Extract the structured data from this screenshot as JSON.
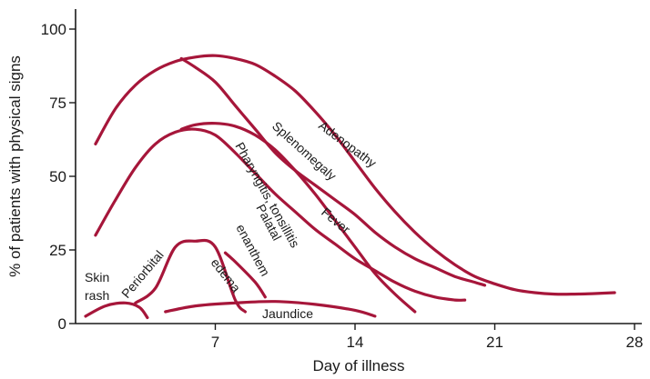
{
  "chart_data": {
    "type": "line",
    "xlabel": "Day of illness",
    "ylabel": "% of patients with physical signs",
    "xlim": [
      0,
      28
    ],
    "ylim": [
      0,
      100
    ],
    "xticks": [
      7,
      14,
      21,
      28
    ],
    "yticks": [
      0,
      25,
      50,
      75,
      100
    ],
    "grid": false,
    "legend": "none",
    "color": "#a6163a",
    "series": [
      {
        "name": "Adenopathy",
        "x": [
          1,
          2,
          3,
          4,
          5,
          6,
          7,
          8,
          9,
          10,
          11,
          12,
          13,
          14,
          15,
          16,
          17,
          18,
          19,
          20,
          21,
          22,
          23,
          24,
          25,
          26,
          27
        ],
        "y": [
          61,
          73,
          81,
          86,
          89,
          90.5,
          91,
          90,
          88,
          84,
          79,
          72,
          64,
          55,
          46,
          38,
          31,
          25,
          20,
          16,
          13.5,
          11.5,
          10.5,
          10,
          10,
          10.2,
          10.5
        ]
      },
      {
        "name": "Splenomegaly",
        "x": [
          5.3,
          6,
          7,
          8,
          9,
          10,
          11,
          12,
          13,
          14,
          15,
          16,
          17,
          18,
          19,
          20,
          20.5
        ],
        "y": [
          90,
          87,
          82,
          74,
          66,
          58,
          52,
          47,
          42,
          37,
          31,
          26,
          22,
          19,
          16,
          14,
          13
        ]
      },
      {
        "name": "Fever",
        "x": [
          1,
          2,
          3,
          4,
          5,
          6,
          7,
          8,
          9,
          10,
          11,
          12,
          13,
          14,
          15,
          16,
          17,
          18,
          19,
          19.5
        ],
        "y": [
          30,
          42,
          53,
          61,
          65,
          66,
          64,
          58,
          51,
          44,
          38,
          32,
          27,
          22,
          18,
          14,
          11,
          9,
          8,
          8
        ]
      },
      {
        "name": "Pharyngitis, tonsillitis",
        "x": [
          5.3,
          6,
          7,
          8,
          9,
          10,
          11,
          12,
          13,
          14,
          15,
          16,
          17
        ],
        "y": [
          66,
          67.5,
          68,
          67,
          64,
          59,
          52,
          44,
          35,
          26,
          17,
          10,
          4
        ]
      },
      {
        "name": "Palatal enanthem",
        "x": [
          7.5,
          8,
          9,
          9.5
        ],
        "y": [
          24,
          21,
          14,
          9
        ]
      },
      {
        "name": "Periorbital edema",
        "x": [
          3,
          4,
          5,
          6,
          7,
          8,
          8.5
        ],
        "y": [
          7,
          12,
          26,
          28,
          26,
          8,
          4
        ]
      },
      {
        "name": "Jaundice",
        "x": [
          4.5,
          6,
          8,
          10,
          12,
          14,
          15
        ],
        "y": [
          4,
          6,
          7,
          7.5,
          6.5,
          4.5,
          2.5
        ]
      },
      {
        "name": "Skin rash",
        "x": [
          0.5,
          1.5,
          2.5,
          3.2,
          3.6
        ],
        "y": [
          2.5,
          6,
          7,
          5.5,
          2
        ]
      }
    ],
    "annotations": [
      {
        "text": "Adenopathy",
        "series": "Adenopathy"
      },
      {
        "text": "Splenomegaly",
        "series": "Splenomegaly"
      },
      {
        "text": "Fever",
        "series": "Fever"
      },
      {
        "text": "Pharyngitis, tonsillitis",
        "series": "Pharyngitis, tonsillitis"
      },
      {
        "text": "Palatal",
        "series": "Palatal enanthem"
      },
      {
        "text": "enanthem",
        "series": "Palatal enanthem"
      },
      {
        "text": "Periorbital",
        "series": "Periorbital edema"
      },
      {
        "text": "edema",
        "series": "Periorbital edema"
      },
      {
        "text": "Jaundice",
        "series": "Jaundice"
      },
      {
        "text": "Skin",
        "series": "Skin rash"
      },
      {
        "text": "rash",
        "series": "Skin rash"
      }
    ]
  }
}
